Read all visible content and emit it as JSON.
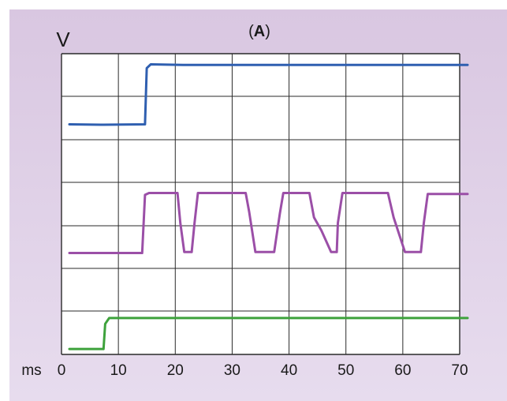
{
  "chart_data": {
    "type": "line",
    "panel_label": "A",
    "ylabel": "V",
    "xlabel": "ms",
    "xlim": [
      0,
      70
    ],
    "x_ticks": [
      0,
      10,
      20,
      30,
      40,
      50,
      60,
      70
    ],
    "grid": true,
    "y_tick_labels": false,
    "series": [
      {
        "color": "#2f5fb0",
        "points": [
          [
            0,
            0.4
          ],
          [
            6,
            0.38
          ],
          [
            13.3,
            0.4
          ],
          [
            13.6,
            3.4
          ],
          [
            14.3,
            3.6
          ],
          [
            20,
            3.57
          ],
          [
            70,
            3.57
          ]
        ]
      },
      {
        "color": "#9b4fa7",
        "points": [
          [
            0,
            0.4
          ],
          [
            12.8,
            0.4
          ],
          [
            13.3,
            3.5
          ],
          [
            14,
            3.6
          ],
          [
            19,
            3.6
          ],
          [
            19.5,
            2.0
          ],
          [
            20.2,
            0.45
          ],
          [
            21.5,
            0.45
          ],
          [
            22,
            2.0
          ],
          [
            22.6,
            3.6
          ],
          [
            31,
            3.6
          ],
          [
            31.6,
            2.6
          ],
          [
            32.7,
            0.45
          ],
          [
            36,
            0.45
          ],
          [
            37,
            2.5
          ],
          [
            37.6,
            3.6
          ],
          [
            42.2,
            3.6
          ],
          [
            43,
            2.3
          ],
          [
            44.3,
            1.6
          ],
          [
            46,
            0.45
          ],
          [
            47,
            0.45
          ],
          [
            47.2,
            2.0
          ],
          [
            48,
            3.6
          ],
          [
            56,
            3.6
          ],
          [
            57,
            2.3
          ],
          [
            59,
            0.45
          ],
          [
            61.8,
            0.45
          ],
          [
            62.3,
            2.0
          ],
          [
            63,
            3.55
          ],
          [
            70,
            3.55
          ]
        ]
      },
      {
        "color": "#3ea23c",
        "points": [
          [
            0,
            0.2
          ],
          [
            6,
            0.2
          ],
          [
            6.3,
            1.5
          ],
          [
            7,
            1.8
          ],
          [
            20,
            1.8
          ],
          [
            70,
            1.8
          ]
        ]
      }
    ]
  }
}
